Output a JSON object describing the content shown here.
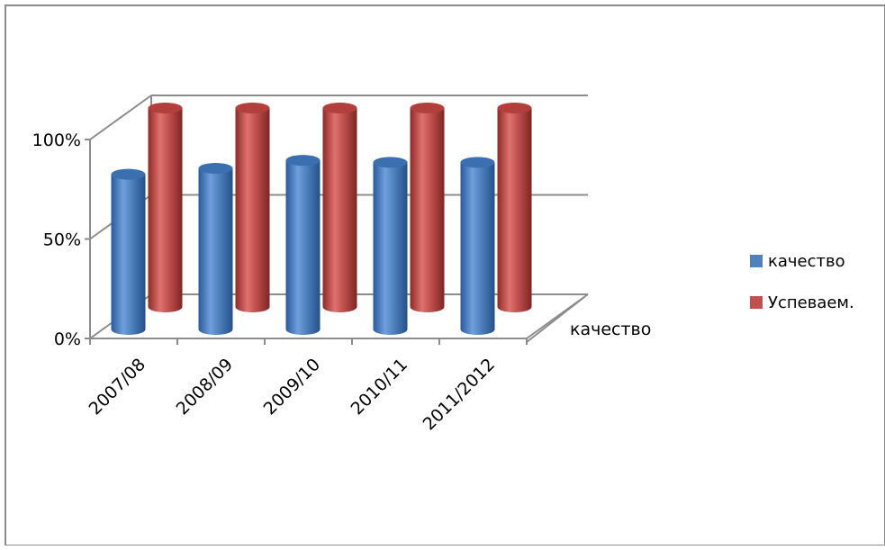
{
  "chart_data": {
    "type": "bar",
    "style": "3d-cylinder",
    "categories": [
      "2007/08",
      "2008/09",
      "2009/10",
      "2010/11",
      "2011/2012"
    ],
    "series": [
      {
        "name": "качество",
        "values": [
          0.78,
          0.81,
          0.85,
          0.84,
          0.84
        ],
        "color": "#4f81bd"
      },
      {
        "name": "Успеваем.",
        "values": [
          1.0,
          1.0,
          1.0,
          1.0,
          1.0
        ],
        "color": "#c0504d"
      }
    ],
    "y_ticks": [
      "0%",
      "50%",
      "100%"
    ],
    "ylim": [
      0,
      1
    ],
    "depth_axis_label": "качество",
    "legend": {
      "position": "right",
      "items": [
        "качество",
        "Успеваем."
      ]
    },
    "grid": true
  }
}
